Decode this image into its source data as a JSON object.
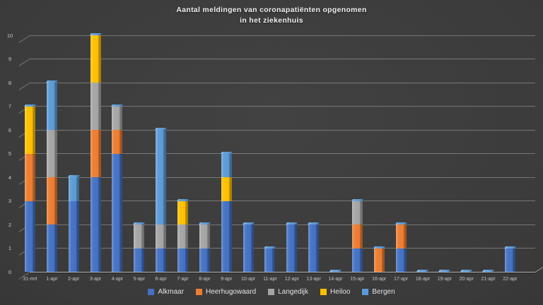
{
  "title": {
    "line1": "Aantal meldingen van coronapatiënten opgenomen",
    "line2": "in het ziekenhuis"
  },
  "chart_data": {
    "type": "bar",
    "stacked": true,
    "style": "3d-column",
    "title": "Aantal meldingen van coronapatiënten opgenomen in het ziekenhuis",
    "categories": [
      "31-mrt",
      "1-apr",
      "2-apr",
      "3-apr",
      "4-apr",
      "5-apr",
      "6-apr",
      "7-apr",
      "8-apr",
      "9-apr",
      "10-apr",
      "11-apr",
      "12-apr",
      "13-apr",
      "14-apr",
      "15-apr",
      "16-apr",
      "17-apr",
      "18-apr",
      "19-apr",
      "20-apr",
      "21-apr",
      "22-apr"
    ],
    "series": [
      {
        "name": "Alkmaar",
        "color": "#4472C4",
        "values": [
          3,
          2,
          3,
          4,
          5,
          1,
          1,
          1,
          1,
          3,
          2,
          1,
          2,
          2,
          0,
          1,
          0,
          1,
          0,
          0,
          0,
          0,
          1
        ]
      },
      {
        "name": "Heerhugowaard",
        "color": "#ED7D31",
        "values": [
          2,
          2,
          0,
          2,
          1,
          0,
          0,
          0,
          0,
          0,
          0,
          0,
          0,
          0,
          0,
          1,
          1,
          1,
          0,
          0,
          0,
          0,
          0
        ]
      },
      {
        "name": "Langedijk",
        "color": "#A5A5A5",
        "values": [
          0,
          2,
          0,
          2,
          1,
          1,
          1,
          1,
          1,
          0,
          0,
          0,
          0,
          0,
          0,
          1,
          0,
          0,
          0,
          0,
          0,
          0,
          0
        ]
      },
      {
        "name": "Heiloo",
        "color": "#FFC000",
        "values": [
          2,
          0,
          0,
          2,
          0,
          0,
          0,
          1,
          0,
          1,
          0,
          0,
          0,
          0,
          0,
          0,
          0,
          0,
          0,
          0,
          0,
          0,
          0
        ]
      },
      {
        "name": "Bergen",
        "color": "#5B9BD5",
        "values": [
          0,
          2,
          1,
          0,
          0,
          0,
          4,
          0,
          0,
          1,
          0,
          0,
          0,
          0,
          0,
          0,
          0,
          0,
          0,
          0,
          0,
          0,
          0
        ]
      }
    ],
    "totals": [
      7,
      8,
      4,
      10,
      7,
      2,
      6,
      3,
      2,
      5,
      2,
      1,
      2,
      2,
      0,
      3,
      1,
      2,
      0,
      0,
      0,
      0,
      1
    ],
    "ylim": [
      0,
      10
    ],
    "yticks": [
      0,
      1,
      2,
      3,
      4,
      5,
      6,
      7,
      8,
      9,
      10
    ],
    "grid": true,
    "legend_position": "bottom",
    "top_face_color": "#5E9AD6"
  }
}
